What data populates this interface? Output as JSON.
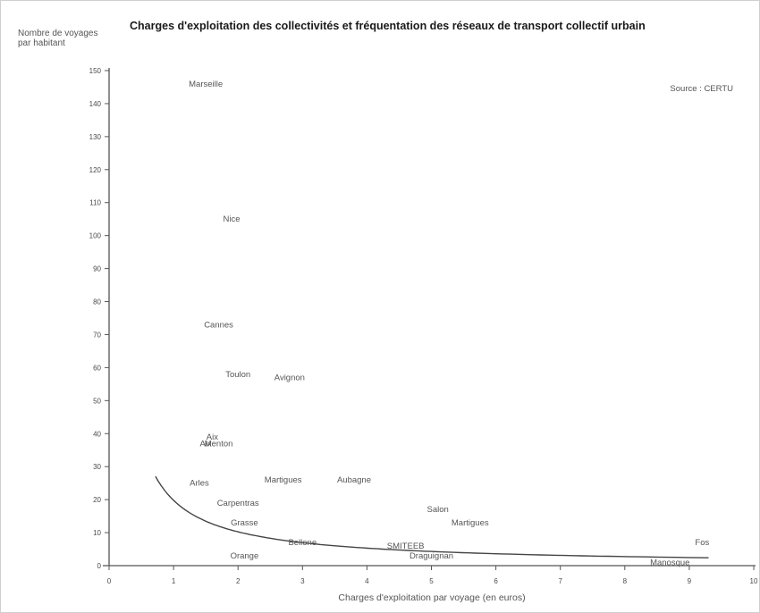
{
  "chart_data": {
    "type": "scatter",
    "title": "Charges d'exploitation des collectivités et fréquentation des réseaux de transport collectif urbain",
    "ylabel_lines": [
      "Nombre de voyages",
      "par habitant"
    ],
    "xlabel": "Charges d'exploitation par voyage (en euros)",
    "source": "Source : CERTU",
    "xlim": [
      0,
      10
    ],
    "ylim": [
      0,
      150
    ],
    "x_ticks": [
      0,
      1,
      2,
      3,
      4,
      5,
      6,
      7,
      8,
      9,
      10
    ],
    "y_ticks": [
      0,
      10,
      20,
      30,
      40,
      50,
      60,
      70,
      80,
      90,
      100,
      110,
      120,
      130,
      140,
      150
    ],
    "grid": false,
    "legend": "none",
    "points": [
      {
        "label": "Marseille",
        "x": 1.5,
        "y": 146
      },
      {
        "label": "Nice",
        "x": 1.9,
        "y": 105
      },
      {
        "label": "Cannes",
        "x": 1.7,
        "y": 73
      },
      {
        "label": "Toulon",
        "x": 2.0,
        "y": 58
      },
      {
        "label": "Avignon",
        "x": 2.8,
        "y": 57
      },
      {
        "label": "Aix",
        "x": 1.6,
        "y": 39
      },
      {
        "label": "Aix",
        "x": 1.5,
        "y": 37
      },
      {
        "label": "Menton",
        "x": 1.7,
        "y": 37
      },
      {
        "label": "Arles",
        "x": 1.4,
        "y": 25
      },
      {
        "label": "Martigues",
        "x": 2.7,
        "y": 26
      },
      {
        "label": "Aubagne",
        "x": 3.8,
        "y": 26
      },
      {
        "label": "Carpentras",
        "x": 2.0,
        "y": 19
      },
      {
        "label": "Grasse",
        "x": 2.1,
        "y": 13
      },
      {
        "label": "Orange",
        "x": 2.1,
        "y": 3
      },
      {
        "label": "Bellone",
        "x": 3.0,
        "y": 7
      },
      {
        "label": "Salon",
        "x": 5.1,
        "y": 17
      },
      {
        "label": "Martigues",
        "x": 5.6,
        "y": 13
      },
      {
        "label": "SMITEEB",
        "x": 4.6,
        "y": 6
      },
      {
        "label": "Draguignan",
        "x": 5.0,
        "y": 3
      },
      {
        "label": "Manosque",
        "x": 8.7,
        "y": 1
      },
      {
        "label": "Fos",
        "x": 9.2,
        "y": 7
      }
    ],
    "trend_curve": {
      "type": "power",
      "coefficient": 19.8,
      "exponent": -0.95,
      "x_range": [
        0.72,
        9.3
      ]
    }
  }
}
